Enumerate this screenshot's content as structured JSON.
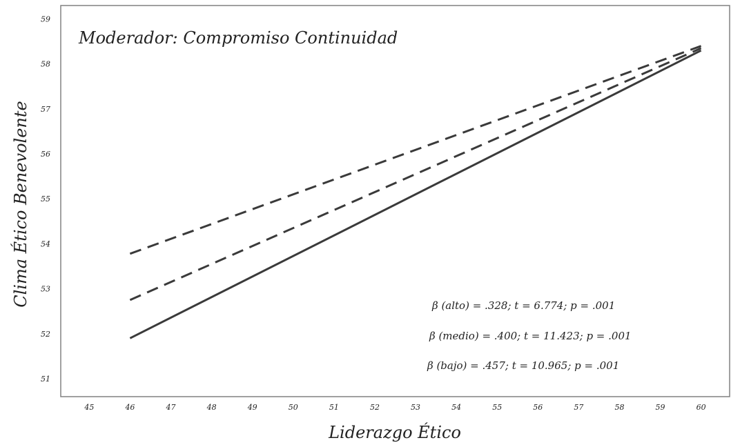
{
  "chart_data": {
    "type": "line",
    "title": "Moderador: Compromiso Continuidad",
    "xlabel": "Liderazgo Ético",
    "ylabel": "Clima Ético Benevolente",
    "xlim": [
      44.3,
      60.7
    ],
    "ylim": [
      50.6,
      59.3
    ],
    "x_ticks": [
      45,
      46,
      47,
      48,
      49,
      50,
      51,
      52,
      53,
      54,
      55,
      56,
      57,
      58,
      59,
      60
    ],
    "y_ticks": [
      51,
      52,
      53,
      54,
      55,
      56,
      57,
      58,
      59
    ],
    "grid": false,
    "legend": "none",
    "series": [
      {
        "style": "dashed",
        "x": [
          46,
          60
        ],
        "y": [
          53.78,
          58.4
        ]
      },
      {
        "style": "dashed",
        "x": [
          46,
          60
        ],
        "y": [
          52.75,
          58.35
        ]
      },
      {
        "style": "solid",
        "x": [
          46,
          60
        ],
        "y": [
          51.9,
          58.3
        ]
      }
    ],
    "annotations": [
      "β (alto) = .328; t = 6.774; p = .001",
      "β (medio) = .400; t = 11.423; p = .001",
      "β (bajo) = .457; t = 10.965; p = .001"
    ],
    "colors": {
      "line": "#3a3a3a",
      "frame": "#808080",
      "text": "#222222"
    }
  }
}
